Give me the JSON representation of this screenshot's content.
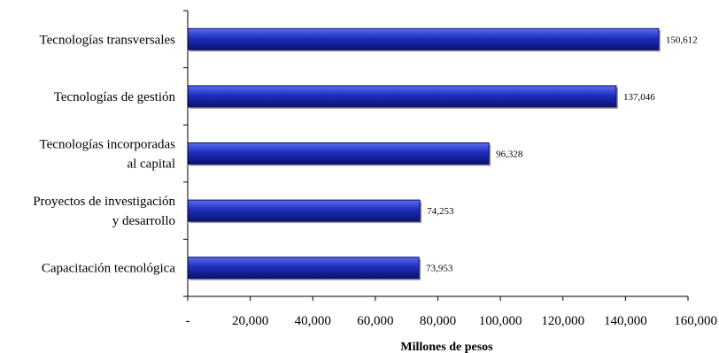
{
  "chart_data": {
    "type": "bar",
    "orientation": "horizontal",
    "title": "",
    "xlabel": "Millones de pesos",
    "ylabel": "",
    "xlim": [
      0,
      160000
    ],
    "grid": false,
    "legend": "none",
    "categories": [
      [
        "Tecnologías transversales"
      ],
      [
        "Tecnologías de gestión"
      ],
      [
        "Tecnologías incorporadas",
        "al capital"
      ],
      [
        "Proyectos de investigación",
        "y desarrollo"
      ],
      [
        "Capacitación tecnológica"
      ]
    ],
    "values": [
      150612,
      137046,
      96328,
      74253,
      73953
    ],
    "value_labels": [
      "150,612",
      "137,046",
      "96,328",
      "74,253",
      "73,953"
    ],
    "x_ticks": [
      0,
      20000,
      40000,
      60000,
      80000,
      100000,
      120000,
      140000,
      160000
    ],
    "x_tick_labels": [
      "-",
      "20,000",
      "40,000",
      "60,000",
      "80,000",
      "100,000",
      "120,000",
      "140,000",
      "160,000"
    ],
    "colors": {
      "bar_fill": "#1f2fbf",
      "bar_dark": "#0a1170",
      "bar_light": "#5a6cf0",
      "axis": "#000000",
      "text": "#000000"
    }
  }
}
